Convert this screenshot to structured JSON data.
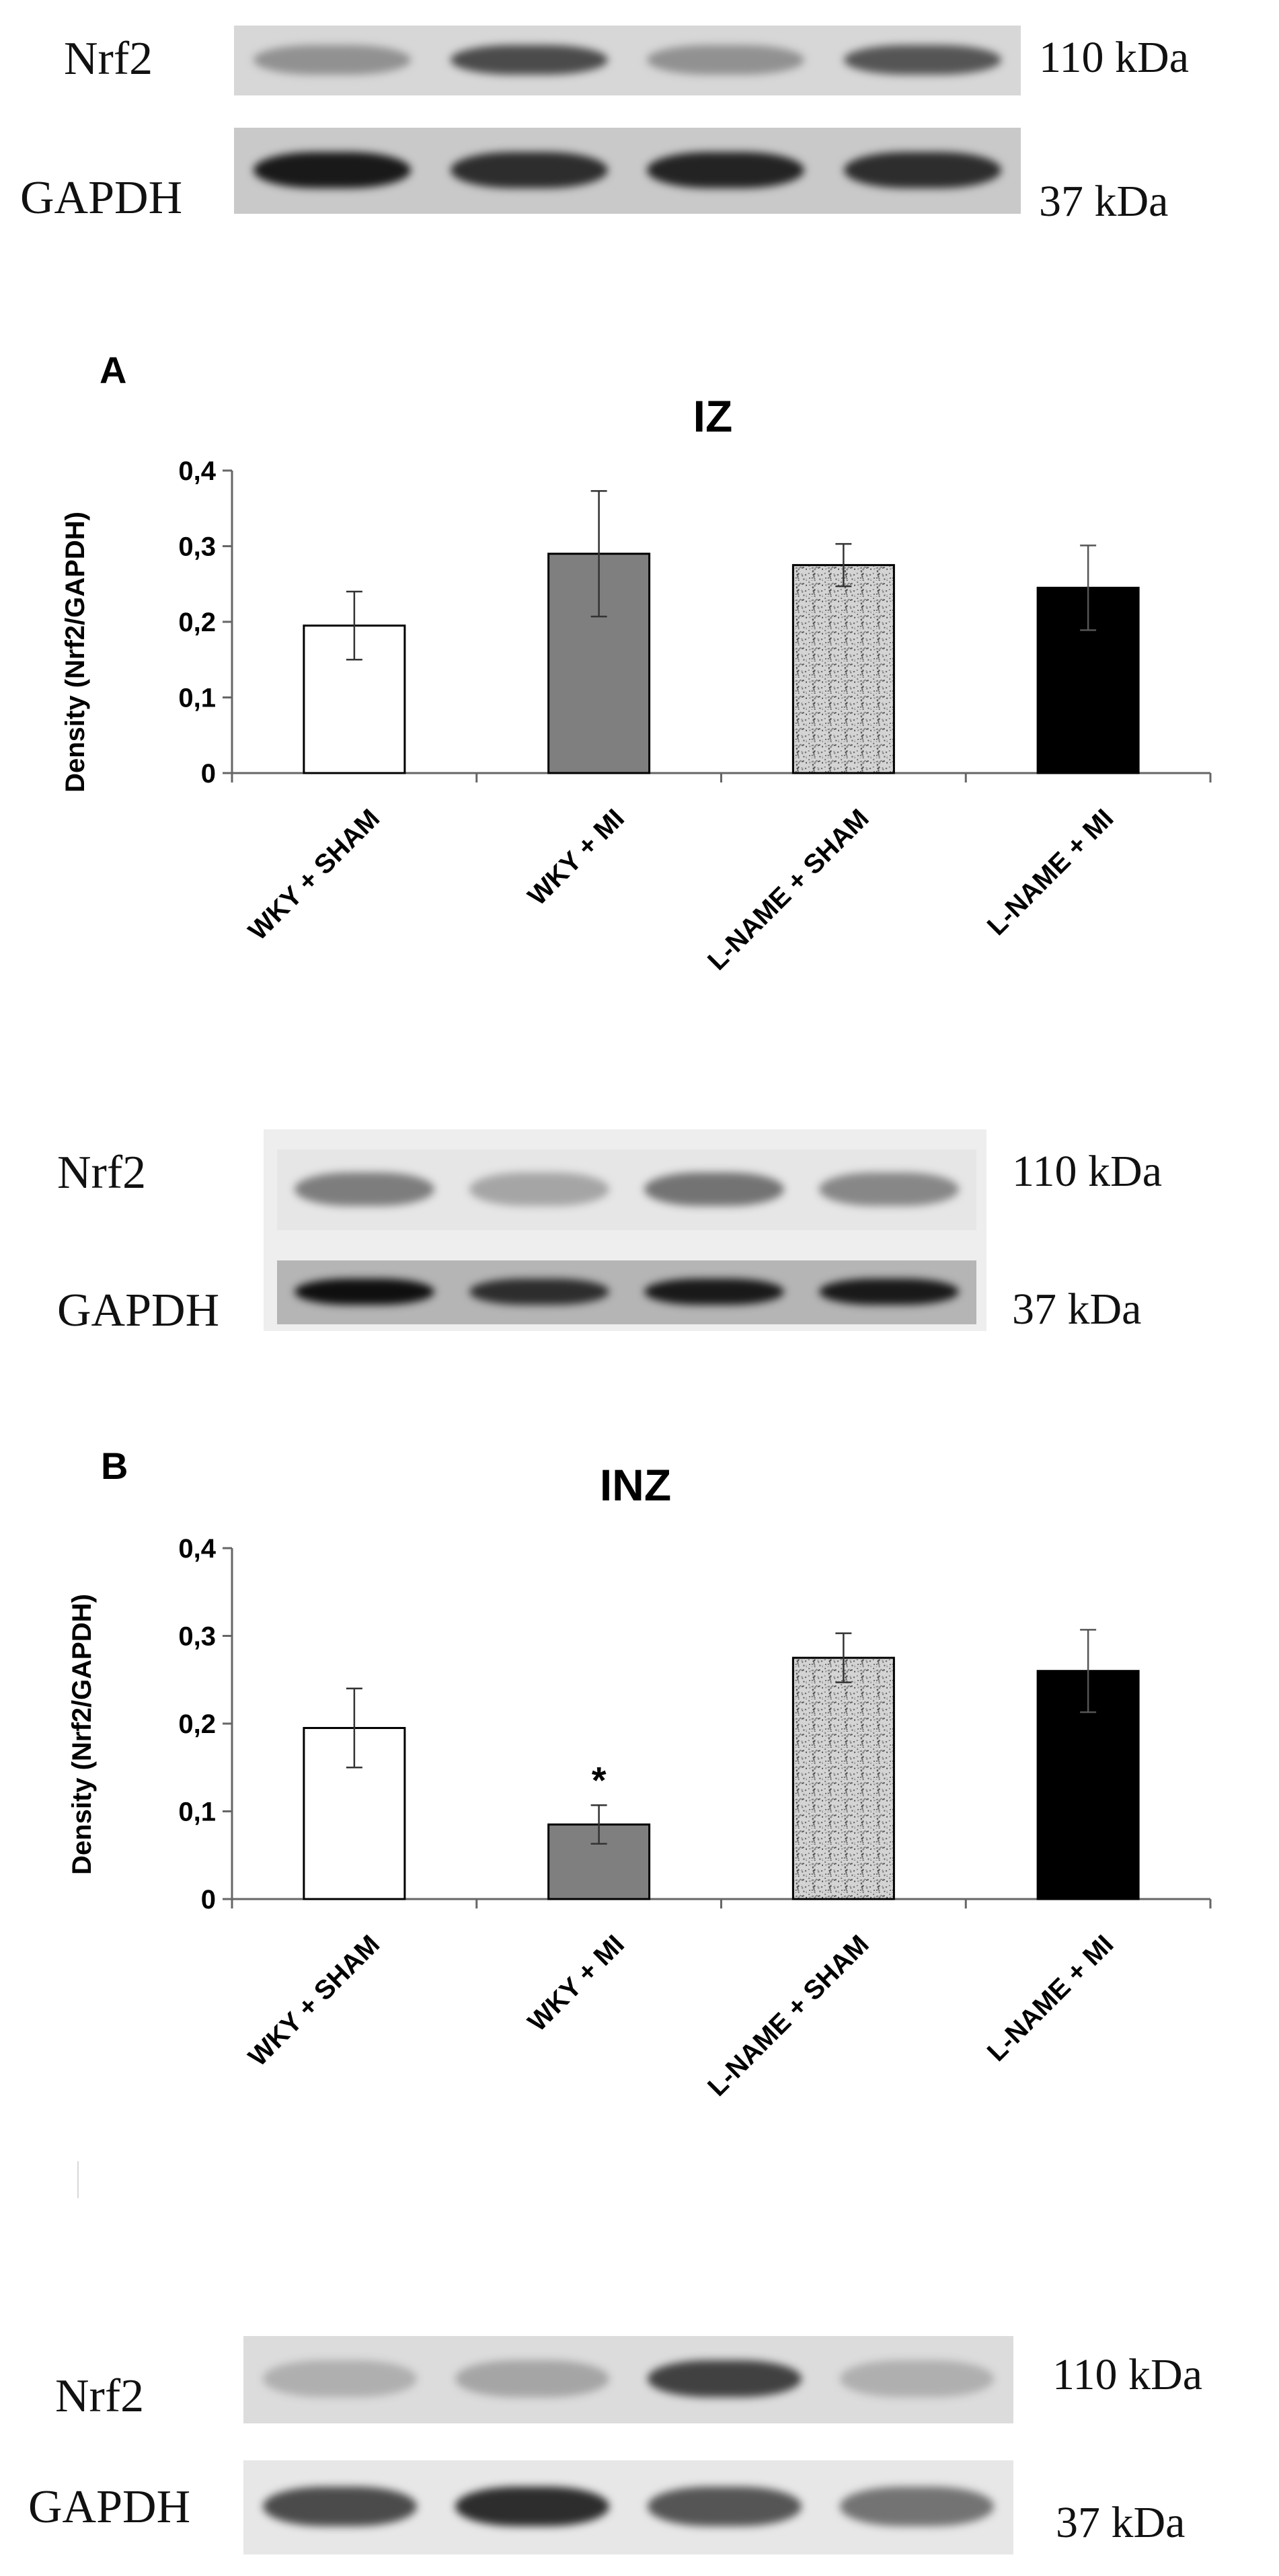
{
  "blots": [
    {
      "labels": [
        "Nrf2",
        "GAPDH"
      ],
      "sizes": [
        "110 kDa",
        "37 kDa"
      ],
      "lanes": 4,
      "top_intensity": [
        0.35,
        0.7,
        0.35,
        0.65
      ],
      "bottom_intensity": [
        0.95,
        0.85,
        0.9,
        0.85
      ]
    },
    {
      "labels": [
        "Nrf2",
        "GAPDH"
      ],
      "sizes": [
        "110 kDa",
        "37 kDa"
      ],
      "lanes": 4,
      "top_intensity": [
        0.45,
        0.25,
        0.5,
        0.4
      ],
      "bottom_intensity": [
        1.0,
        0.85,
        0.95,
        0.95
      ]
    },
    {
      "labels": [
        "Nrf2",
        "GAPDH"
      ],
      "sizes": [
        "110 kDa",
        "37 kDa"
      ],
      "lanes": 4,
      "top_intensity": [
        0.2,
        0.25,
        0.75,
        0.2
      ],
      "bottom_intensity": [
        0.7,
        0.85,
        0.65,
        0.5
      ]
    }
  ],
  "chart_data": [
    {
      "panel": "A",
      "type": "bar",
      "title": "IZ",
      "ylabel": "Density (Nrf2/GAPDH)",
      "xlabel": "",
      "categories": [
        "WKY + SHAM",
        "WKY + MI",
        "L-NAME + SHAM",
        "L-NAME + MI"
      ],
      "values": [
        0.195,
        0.29,
        0.275,
        0.245
      ],
      "errors": [
        0.045,
        0.083,
        0.028,
        0.056
      ],
      "ylim": [
        0,
        0.4
      ],
      "yticks": [
        "0",
        "0,1",
        "0,2",
        "0,3",
        "0,4"
      ],
      "bar_colors": [
        "#ffffff",
        "#7f7f7f",
        "#c8c8c8",
        "#000000"
      ],
      "bar_patterns": [
        "none",
        "none",
        "speckle",
        "none"
      ],
      "annotations": [
        "",
        "",
        "",
        ""
      ],
      "grid": false
    },
    {
      "panel": "B",
      "type": "bar",
      "title": "INZ",
      "ylabel": "Density (Nrf2/GAPDH)",
      "xlabel": "",
      "categories": [
        "WKY + SHAM",
        "WKY + MI",
        "L-NAME + SHAM",
        "L-NAME + MI"
      ],
      "values": [
        0.195,
        0.085,
        0.275,
        0.26
      ],
      "errors": [
        0.045,
        0.022,
        0.028,
        0.047
      ],
      "ylim": [
        0,
        0.4
      ],
      "yticks": [
        "0",
        "0,1",
        "0,2",
        "0,3",
        "0,4"
      ],
      "bar_colors": [
        "#ffffff",
        "#7f7f7f",
        "#c8c8c8",
        "#000000"
      ],
      "bar_patterns": [
        "none",
        "none",
        "speckle",
        "none"
      ],
      "annotations": [
        "",
        "*",
        "",
        ""
      ],
      "grid": false
    }
  ]
}
